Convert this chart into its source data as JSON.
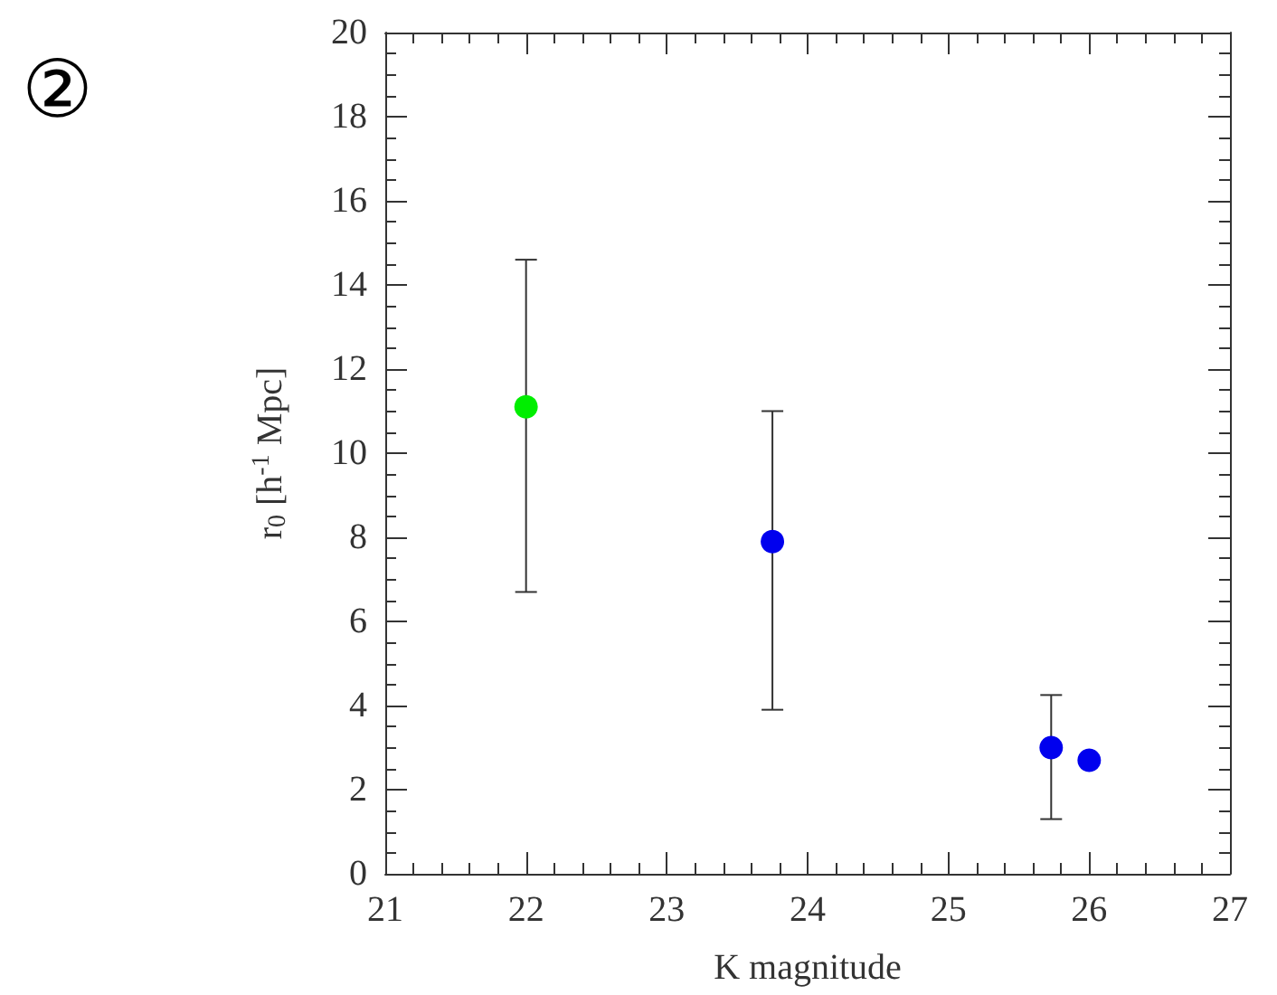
{
  "chart_data": {
    "type": "scatter",
    "xlabel": "K magnitude",
    "ylabel": "r$_{0}$ [h$^{-1}$ Mpc]",
    "annotations": [
      "②"
    ],
    "series": [
      {
        "color": "#00ee00",
        "x": [
          22.0
        ],
        "values": [
          11.1
        ],
        "errors": [
          [
            6.7,
            14.6
          ]
        ]
      },
      {
        "color": "#0000ee",
        "x": [
          23.75,
          25.73,
          26.0
        ],
        "values": [
          7.9,
          3.0,
          2.7
        ],
        "errors": [
          [
            3.9,
            11.0
          ],
          [
            1.3,
            4.25
          ],
          null
        ]
      }
    ],
    "xlim": [
      21,
      27
    ],
    "xticks": [
      21,
      22,
      23,
      24,
      25,
      26,
      27
    ],
    "ylim": [
      0,
      20
    ],
    "yticks": [
      0,
      2,
      4,
      6,
      8,
      10,
      12,
      14,
      16,
      18,
      20
    ],
    "marker": "circle",
    "grid": false
  }
}
